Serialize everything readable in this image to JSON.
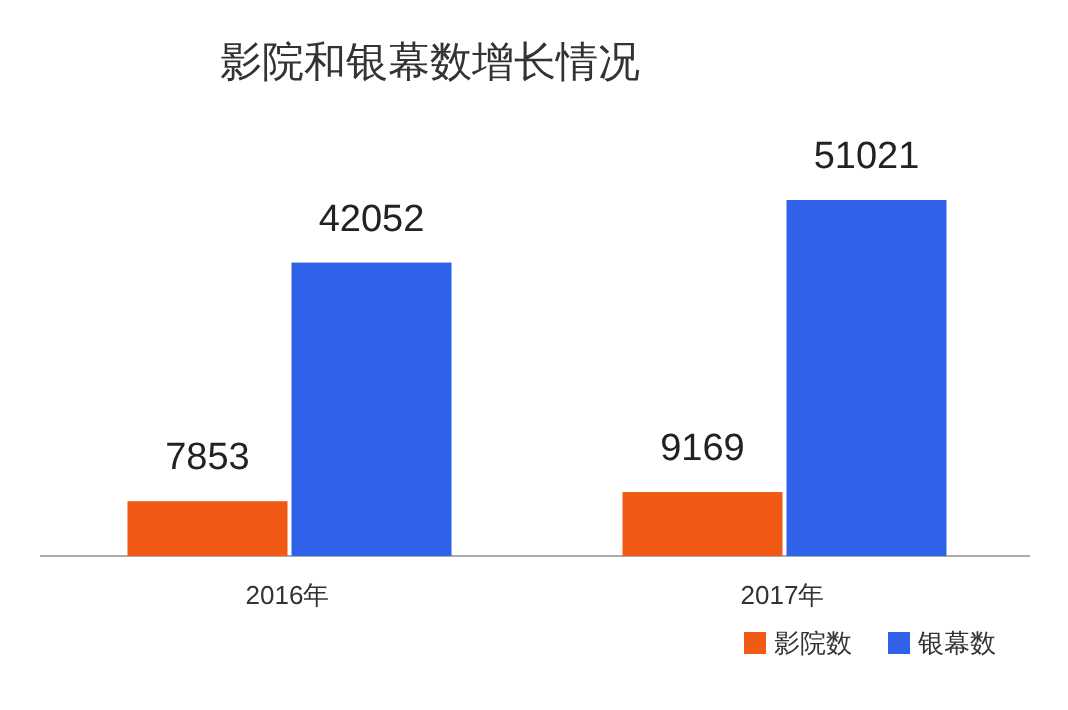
{
  "chart_data": {
    "type": "bar",
    "title": "影院和银幕数增长情况",
    "categories": [
      "2016年",
      "2017年"
    ],
    "series": [
      {
        "name": "影院数",
        "color": "#f05a14",
        "values": [
          7853,
          9169
        ]
      },
      {
        "name": "银幕数",
        "color": "#2f62e8",
        "values": [
          42052,
          51021
        ]
      }
    ],
    "data_labels": true,
    "legend": "bottom right",
    "grid": false
  }
}
